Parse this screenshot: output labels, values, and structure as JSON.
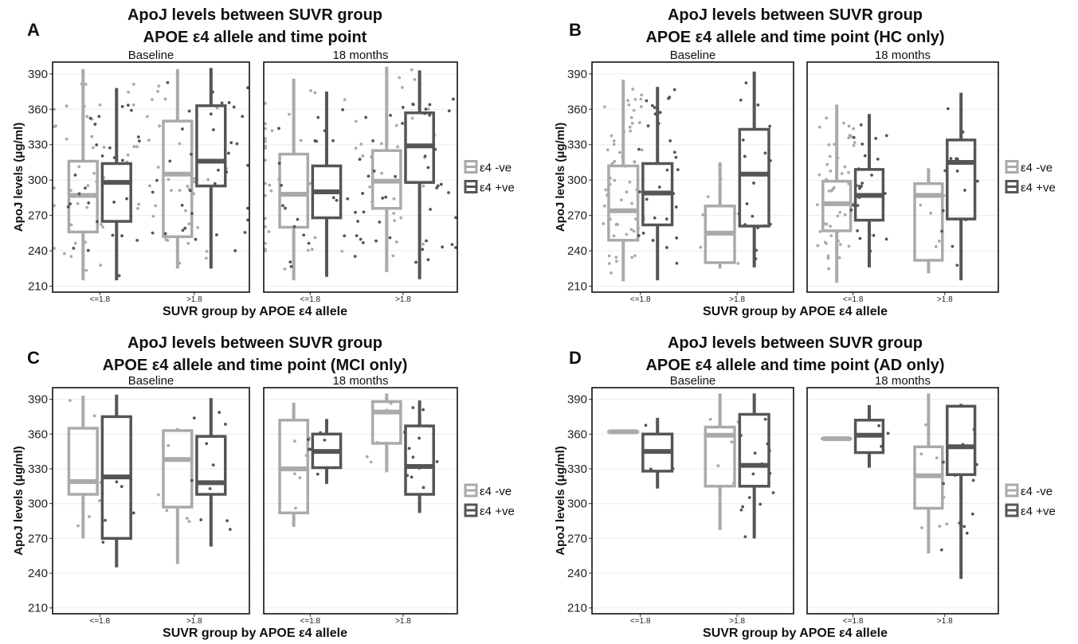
{
  "chart_data": [
    {
      "panel_label": "A",
      "type": "box",
      "title": [
        "ApoJ levels between SUVR group",
        "APOE ε4 allele and time point"
      ],
      "xlabel": "SUVR group by APOE ε4 allele",
      "ylabel": "ApoJ levels (μg/ml)",
      "yticks": [
        210,
        240,
        270,
        300,
        330,
        360,
        390
      ],
      "ylim": [
        205,
        400
      ],
      "facets": [
        "Baseline",
        "18 months"
      ],
      "categories": [
        "<=1.8",
        ">1.8"
      ],
      "legend": [
        "ε4 -ve",
        "ε4 +ve"
      ],
      "series_colors": [
        "#aaaaaa",
        "#555555"
      ],
      "boxes": [
        {
          "facet": 0,
          "category": 0,
          "group": 0,
          "min": 215,
          "q1": 256,
          "median": 287,
          "q3": 316,
          "max": 394
        },
        {
          "facet": 0,
          "category": 0,
          "group": 1,
          "min": 215,
          "q1": 265,
          "median": 298,
          "q3": 314,
          "max": 378
        },
        {
          "facet": 0,
          "category": 1,
          "group": 0,
          "min": 225,
          "q1": 252,
          "median": 305,
          "q3": 350,
          "max": 394
        },
        {
          "facet": 0,
          "category": 1,
          "group": 1,
          "min": 225,
          "q1": 295,
          "median": 316,
          "q3": 363,
          "max": 395
        },
        {
          "facet": 1,
          "category": 0,
          "group": 0,
          "min": 215,
          "q1": 260,
          "median": 288,
          "q3": 322,
          "max": 386
        },
        {
          "facet": 1,
          "category": 0,
          "group": 1,
          "min": 218,
          "q1": 268,
          "median": 290,
          "q3": 312,
          "max": 375
        },
        {
          "facet": 1,
          "category": 1,
          "group": 0,
          "min": 222,
          "q1": 276,
          "median": 299,
          "q3": 325,
          "max": 396
        },
        {
          "facet": 1,
          "category": 1,
          "group": 1,
          "min": 216,
          "q1": 298,
          "median": 329,
          "q3": 357,
          "max": 393
        }
      ],
      "jitter_counts": [
        [
          38,
          32
        ],
        [
          30,
          34
        ]
      ]
    },
    {
      "panel_label": "B",
      "type": "box",
      "title": [
        "ApoJ levels between SUVR group",
        "APOE ε4 allele and time point (HC only)"
      ],
      "xlabel": "SUVR group by APOE ε4 allele",
      "ylabel": "ApoJ levels (μg/ml)",
      "yticks": [
        210,
        240,
        270,
        300,
        330,
        360,
        390
      ],
      "ylim": [
        205,
        400
      ],
      "facets": [
        "Baseline",
        "18 months"
      ],
      "categories": [
        "<=1.8",
        ">1.8"
      ],
      "legend": [
        "ε4 -ve",
        "ε4 +ve"
      ],
      "series_colors": [
        "#aaaaaa",
        "#555555"
      ],
      "boxes": [
        {
          "facet": 0,
          "category": 0,
          "group": 0,
          "min": 214,
          "q1": 249,
          "median": 274,
          "q3": 312,
          "max": 385
        },
        {
          "facet": 0,
          "category": 0,
          "group": 1,
          "min": 215,
          "q1": 262,
          "median": 289,
          "q3": 314,
          "max": 379
        },
        {
          "facet": 0,
          "category": 1,
          "group": 0,
          "min": 225,
          "q1": 230,
          "median": 255,
          "q3": 278,
          "max": 315
        },
        {
          "facet": 0,
          "category": 1,
          "group": 1,
          "min": 226,
          "q1": 261,
          "median": 305,
          "q3": 343,
          "max": 392
        },
        {
          "facet": 1,
          "category": 0,
          "group": 0,
          "min": 213,
          "q1": 257,
          "median": 280,
          "q3": 299,
          "max": 364
        },
        {
          "facet": 1,
          "category": 0,
          "group": 1,
          "min": 226,
          "q1": 266,
          "median": 287,
          "q3": 309,
          "max": 356
        },
        {
          "facet": 1,
          "category": 1,
          "group": 0,
          "min": 221,
          "q1": 232,
          "median": 287,
          "q3": 297,
          "max": 310
        },
        {
          "facet": 1,
          "category": 1,
          "group": 1,
          "min": 215,
          "q1": 267,
          "median": 315,
          "q3": 334,
          "max": 374
        }
      ],
      "jitter_counts": [
        [
          60,
          30
        ],
        [
          6,
          18
        ],
        [
          55,
          26
        ],
        [
          5,
          14
        ]
      ]
    },
    {
      "panel_label": "C",
      "type": "box",
      "title": [
        "ApoJ levels between SUVR group",
        "APOE ε4 allele and time point (MCI only)"
      ],
      "xlabel": "SUVR group by APOE ε4 allele",
      "ylabel": "ApoJ levels (μg/ml)",
      "yticks": [
        210,
        240,
        270,
        300,
        330,
        360,
        390
      ],
      "ylim": [
        205,
        400
      ],
      "facets": [
        "Baseline",
        "18 months"
      ],
      "categories": [
        "<=1.8",
        ">1.8"
      ],
      "legend": [
        "ε4 -ve",
        "ε4 +ve"
      ],
      "series_colors": [
        "#aaaaaa",
        "#555555"
      ],
      "boxes": [
        {
          "facet": 0,
          "category": 0,
          "group": 0,
          "min": 270,
          "q1": 308,
          "median": 319,
          "q3": 365,
          "max": 393
        },
        {
          "facet": 0,
          "category": 0,
          "group": 1,
          "min": 245,
          "q1": 270,
          "median": 323,
          "q3": 375,
          "max": 394
        },
        {
          "facet": 0,
          "category": 1,
          "group": 0,
          "min": 248,
          "q1": 297,
          "median": 338,
          "q3": 363,
          "max": 365
        },
        {
          "facet": 0,
          "category": 1,
          "group": 1,
          "min": 263,
          "q1": 308,
          "median": 318,
          "q3": 358,
          "max": 391
        },
        {
          "facet": 1,
          "category": 0,
          "group": 0,
          "min": 280,
          "q1": 292,
          "median": 330,
          "q3": 372,
          "max": 387
        },
        {
          "facet": 1,
          "category": 0,
          "group": 1,
          "min": 317,
          "q1": 331,
          "median": 345,
          "q3": 360,
          "max": 373
        },
        {
          "facet": 1,
          "category": 1,
          "group": 0,
          "min": 327,
          "q1": 352,
          "median": 379,
          "q3": 388,
          "max": 395
        },
        {
          "facet": 1,
          "category": 1,
          "group": 1,
          "min": 292,
          "q1": 308,
          "median": 332,
          "q3": 367,
          "max": 389
        }
      ],
      "jitter_counts": [
        [
          8,
          6
        ],
        [
          5,
          12
        ],
        [
          8,
          6
        ],
        [
          5,
          12
        ]
      ]
    },
    {
      "panel_label": "D",
      "type": "box",
      "title": [
        "ApoJ levels between SUVR group",
        "APOE ε4 allele and time point (AD only)"
      ],
      "xlabel": "SUVR group by APOE ε4 allele",
      "ylabel": "ApoJ levels (μg/ml)",
      "yticks": [
        210,
        240,
        270,
        300,
        330,
        360,
        390
      ],
      "ylim": [
        205,
        400
      ],
      "facets": [
        "Baseline",
        "18 months"
      ],
      "categories": [
        "<=1.8",
        ">1.8"
      ],
      "legend": [
        "ε4 -ve",
        "ε4 +ve"
      ],
      "series_colors": [
        "#aaaaaa",
        "#555555"
      ],
      "boxes": [
        {
          "facet": 0,
          "category": 0,
          "group": 0,
          "min": 362,
          "q1": 362,
          "median": 362,
          "q3": 362,
          "max": 362
        },
        {
          "facet": 0,
          "category": 0,
          "group": 1,
          "min": 313,
          "q1": 328,
          "median": 345,
          "q3": 360,
          "max": 374
        },
        {
          "facet": 0,
          "category": 1,
          "group": 0,
          "min": 277,
          "q1": 315,
          "median": 359,
          "q3": 366,
          "max": 395
        },
        {
          "facet": 0,
          "category": 1,
          "group": 1,
          "min": 270,
          "q1": 315,
          "median": 333,
          "q3": 377,
          "max": 395
        },
        {
          "facet": 1,
          "category": 0,
          "group": 0,
          "min": 356,
          "q1": 356,
          "median": 356,
          "q3": 356,
          "max": 356
        },
        {
          "facet": 1,
          "category": 0,
          "group": 1,
          "min": 331,
          "q1": 344,
          "median": 359,
          "q3": 372,
          "max": 385
        },
        {
          "facet": 1,
          "category": 1,
          "group": 0,
          "min": 257,
          "q1": 296,
          "median": 324,
          "q3": 349,
          "max": 395
        },
        {
          "facet": 1,
          "category": 1,
          "group": 1,
          "min": 235,
          "q1": 325,
          "median": 349,
          "q3": 384,
          "max": 386
        }
      ],
      "jitter_counts": [
        [
          1,
          3
        ],
        [
          7,
          14
        ],
        [
          1,
          3
        ],
        [
          7,
          14
        ]
      ]
    }
  ]
}
